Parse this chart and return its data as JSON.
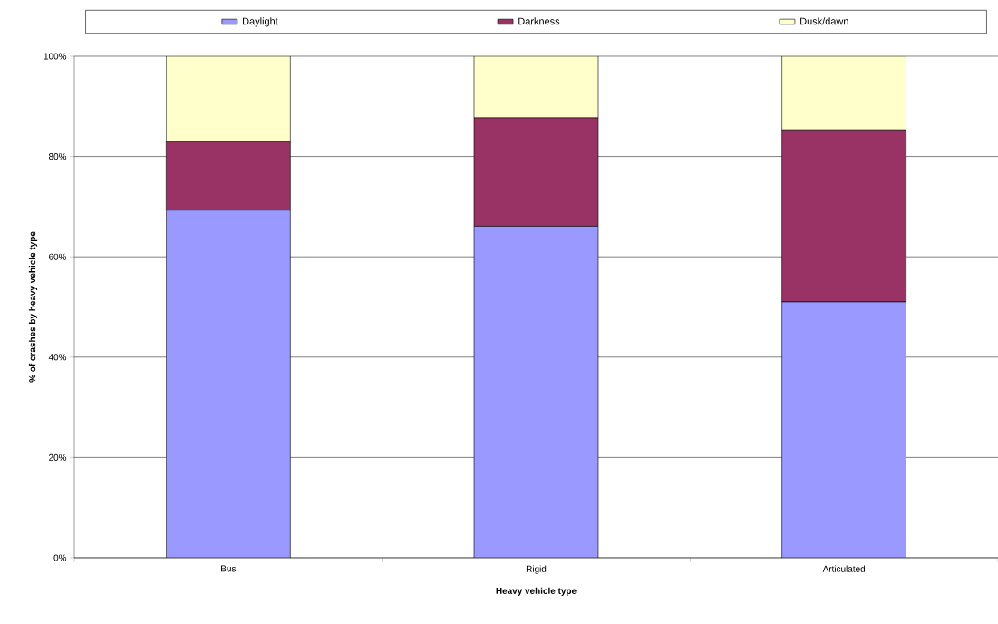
{
  "chart_data": {
    "type": "bar",
    "stacked": true,
    "xlabel": "Heavy vehicle type",
    "ylabel": "% of crashes by heavy vehicle type",
    "categories": [
      "Bus",
      "Rigid",
      "Articulated"
    ],
    "series": [
      {
        "name": "Daylight",
        "color": "#9999ff",
        "values": [
          69.3,
          66.1,
          51.0
        ]
      },
      {
        "name": "Darkness",
        "color": "#993366",
        "values": [
          13.7,
          21.6,
          34.3
        ]
      },
      {
        "name": "Dusk/dawn",
        "color": "#ffffcc",
        "values": [
          17.0,
          12.3,
          14.7
        ]
      }
    ],
    "ylim": [
      0,
      100
    ],
    "yticks": [
      {
        "value": 0,
        "label": "0%"
      },
      {
        "value": 20,
        "label": "20%"
      },
      {
        "value": 40,
        "label": "40%"
      },
      {
        "value": 60,
        "label": "60%"
      },
      {
        "value": 80,
        "label": "80%"
      },
      {
        "value": 100,
        "label": "100%"
      }
    ],
    "grid": "y",
    "legend": "top"
  }
}
